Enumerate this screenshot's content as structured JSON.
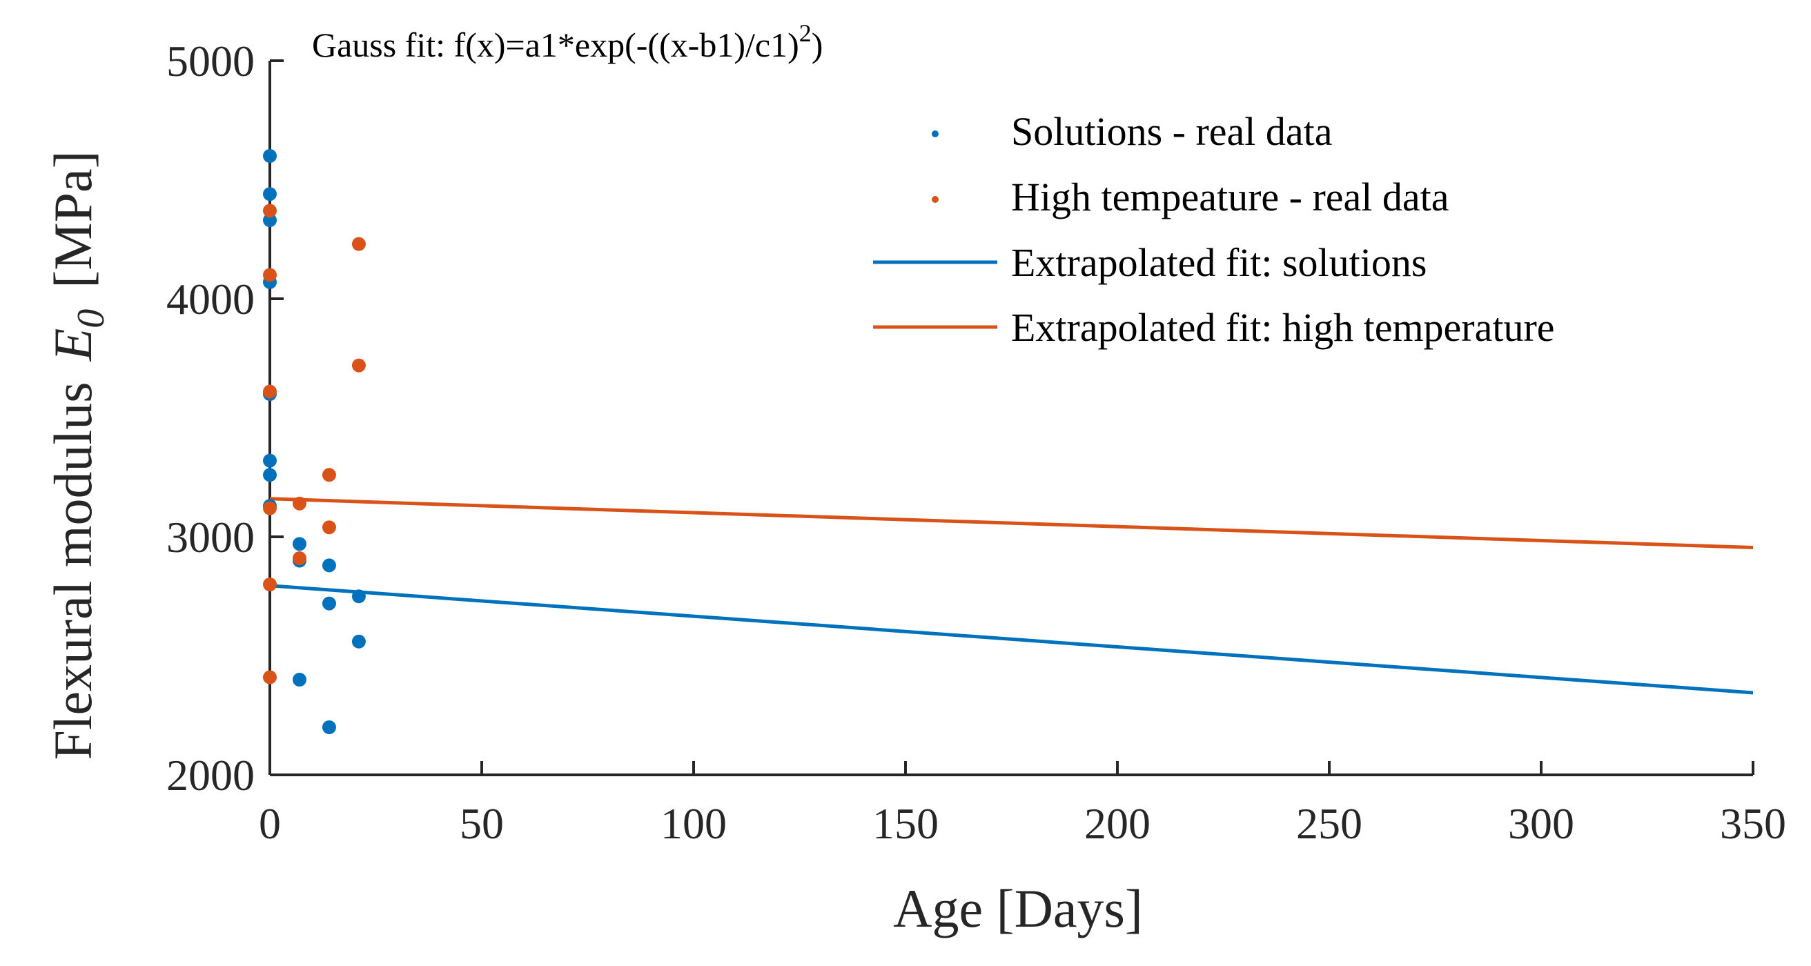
{
  "chart_data": {
    "type": "scatter",
    "annotation": {
      "prefix": "Gauss fit: f(x)=a1*exp(-((x-b1)/c1)",
      "superscript": "2",
      "suffix": ")"
    },
    "xlabel": "Age [Days]",
    "ylabel": {
      "text": "Flexural modulus",
      "symbol": "E",
      "subscript": "0",
      "unit": "[MPa]"
    },
    "xlim": [
      0,
      350
    ],
    "ylim": [
      2000,
      5000
    ],
    "x_ticks": [
      0,
      50,
      100,
      150,
      200,
      250,
      300,
      350
    ],
    "y_ticks": [
      2000,
      3000,
      4000,
      5000
    ],
    "grid": false,
    "legend_position": "top-right",
    "colors": {
      "solutions": "#0072BD",
      "high_temperature": "#D95319"
    },
    "series": [
      {
        "name": "Solutions - real data",
        "kind": "scatter",
        "color_key": "solutions",
        "points": [
          [
            0,
            4600
          ],
          [
            0,
            4440
          ],
          [
            0,
            4330
          ],
          [
            0,
            4070
          ],
          [
            0,
            3600
          ],
          [
            0,
            3320
          ],
          [
            0,
            3260
          ],
          [
            0,
            3130
          ],
          [
            7,
            2970
          ],
          [
            7,
            2900
          ],
          [
            7,
            2400
          ],
          [
            14,
            2880
          ],
          [
            14,
            2720
          ],
          [
            14,
            2200
          ],
          [
            21,
            2750
          ],
          [
            21,
            2560
          ]
        ]
      },
      {
        "name": "High tempeature - real data",
        "kind": "scatter",
        "color_key": "high_temperature",
        "points": [
          [
            0,
            4370
          ],
          [
            0,
            4100
          ],
          [
            0,
            3610
          ],
          [
            0,
            3120
          ],
          [
            0,
            2800
          ],
          [
            0,
            2410
          ],
          [
            7,
            3140
          ],
          [
            7,
            2910
          ],
          [
            14,
            3260
          ],
          [
            14,
            3040
          ],
          [
            21,
            4230
          ],
          [
            21,
            3720
          ]
        ]
      },
      {
        "name": "Extrapolated fit: solutions",
        "kind": "line",
        "color_key": "solutions",
        "points": [
          [
            0,
            2795
          ],
          [
            350,
            2345
          ]
        ]
      },
      {
        "name": "Extrapolated fit: high temperature",
        "kind": "line",
        "color_key": "high_temperature",
        "points": [
          [
            0,
            3160
          ],
          [
            350,
            2955
          ]
        ]
      }
    ]
  }
}
